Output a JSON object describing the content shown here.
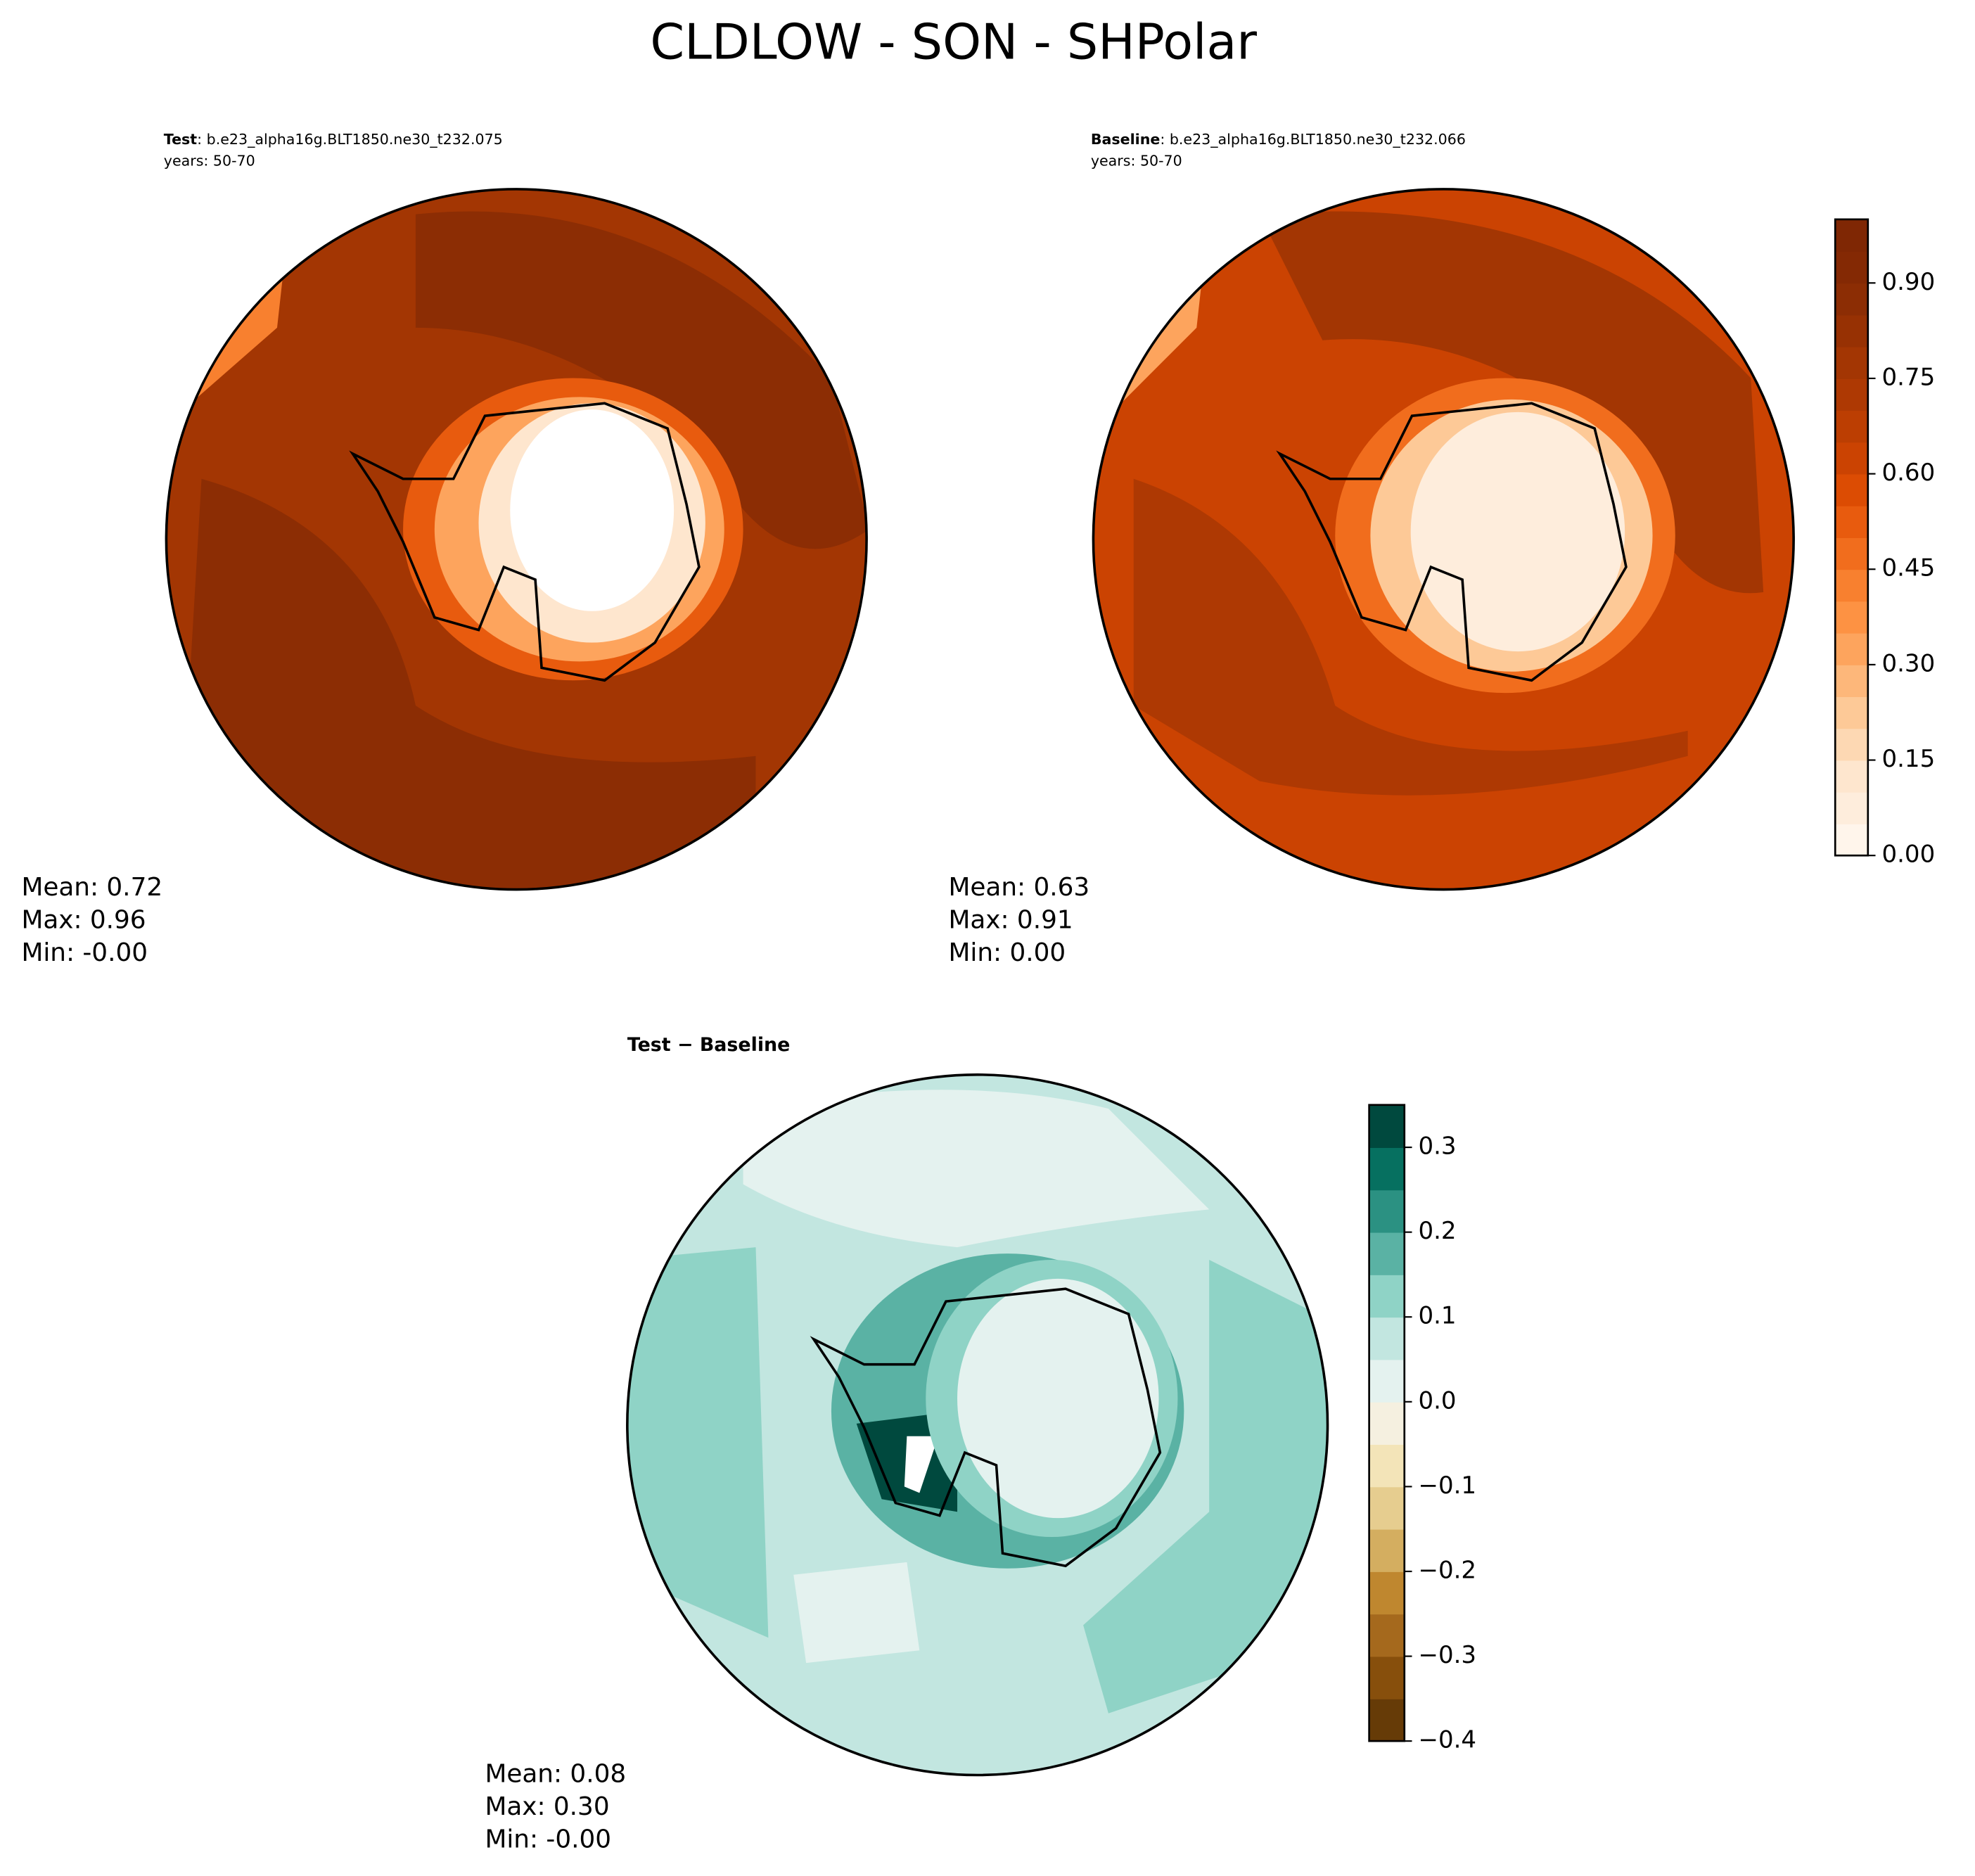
{
  "title": "CLDLOW - SON - SHPolar",
  "panels": [
    {
      "label_bold": "Test",
      "label_rest": ": b.e23_alpha16g.BLT1850.ne30_t232.075",
      "years": "years: 50-70",
      "stats": [
        "Mean:  0.72",
        "Max:  0.96",
        "Min: -0.00"
      ]
    },
    {
      "label_bold": "Baseline",
      "label_rest": ": b.e23_alpha16g.BLT1850.ne30_t232.066",
      "years": "years: 50-70",
      "stats": [
        "Mean:  0.63",
        "Max:  0.91",
        "Min:  0.00"
      ]
    },
    {
      "label_bold": "Test − Baseline",
      "stats": [
        "Mean:  0.08",
        "Max:  0.30",
        "Min: -0.00"
      ]
    }
  ],
  "colorbars": [
    {
      "ylim": [
        0,
        1
      ],
      "yticks": [
        {
          "value": 0,
          "label": "0.00"
        },
        0.15,
        {
          "value": 0.3,
          "label": "0.30"
        },
        0.45,
        {
          "value": 0.6,
          "label": "0.60"
        },
        0.75,
        {
          "value": 0.9,
          "label": "0.90"
        }
      ],
      "colors": [
        "#fff5eb",
        "#feeddc",
        "#fee6ce",
        "#fdd8b3",
        "#fdc997",
        "#fdb77a",
        "#fda45d",
        "#fd9243",
        "#f8802f",
        "#f16d1d",
        "#e85b0e",
        "#dc4c03",
        "#cb4302",
        "#bc3e02",
        "#ae3903",
        "#a33603",
        "#973103",
        "#8c2d04",
        "#842904",
        "#7f2704"
      ]
    },
    {
      "ylim": [
        -0.4,
        0.35
      ],
      "yticks": [
        {
          "value": -0.4,
          "label": "−0.4"
        },
        {
          "value": -0.3,
          "label": "−0.3"
        },
        {
          "value": -0.2,
          "label": "−0.2"
        },
        {
          "value": -0.1,
          "label": "−0.1"
        },
        {
          "value": 0,
          "label": "0.0"
        },
        0.1,
        0.2,
        0.3
      ],
      "colors": [
        "#663b07",
        "#874f0c",
        "#a5691d",
        "#bf872f",
        "#d4ae60",
        "#e6cd8f",
        "#f3e4b8",
        "#f5f0e0",
        "#e4f2ef",
        "#c2e6e0",
        "#8fd3c6",
        "#5ab2a4",
        "#2b9182",
        "#067060",
        "#00493e"
      ]
    }
  ]
}
